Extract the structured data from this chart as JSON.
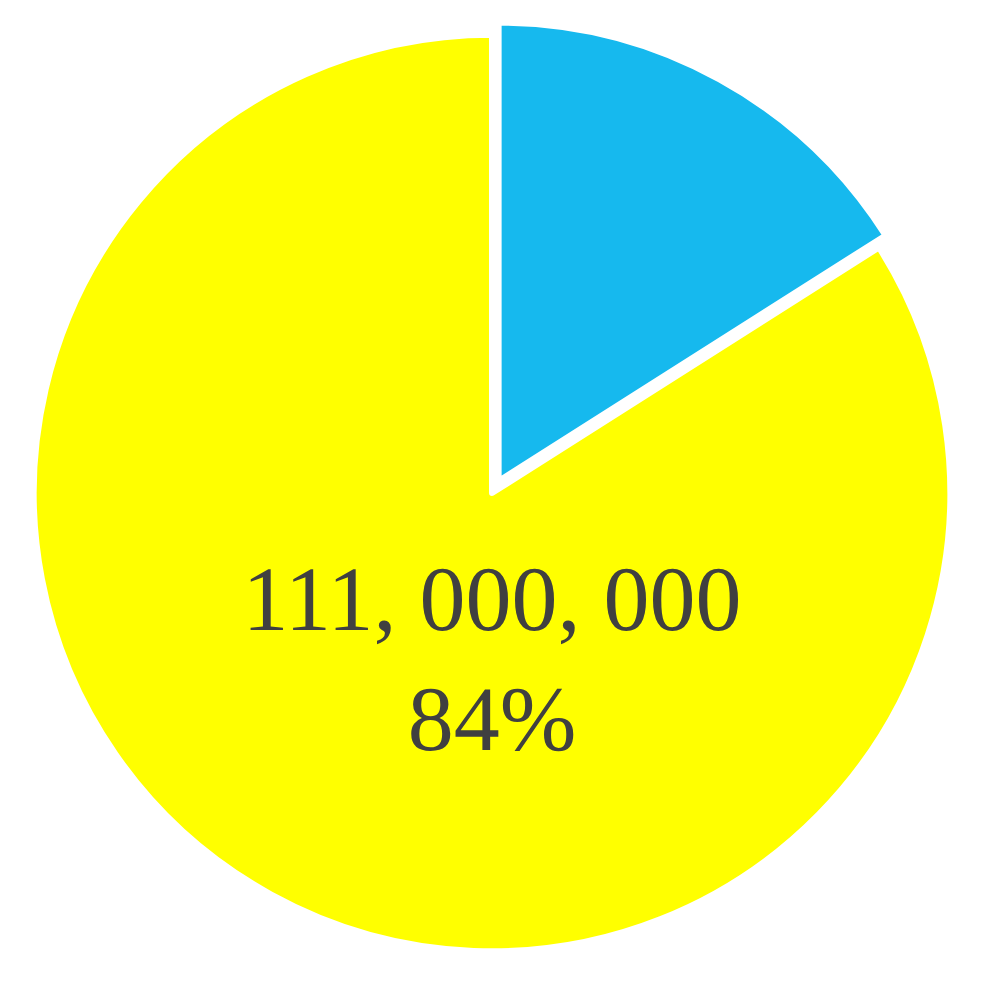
{
  "chart_data": {
    "type": "pie",
    "categories": [
      null,
      null
    ],
    "values": [
      16,
      84
    ],
    "colors": [
      "#16b9ee",
      "#ffff00"
    ],
    "value_labels": [
      null,
      "111, 000, 000\n84%"
    ],
    "legend": false
  }
}
